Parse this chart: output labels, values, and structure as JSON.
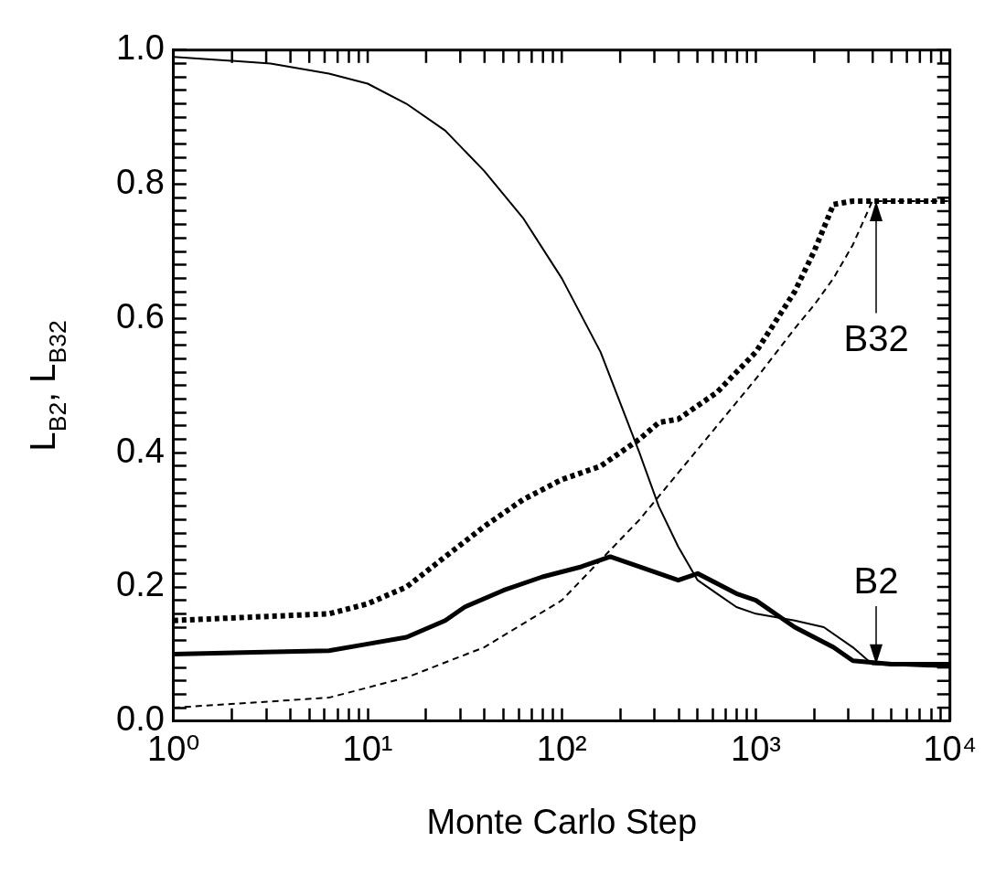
{
  "chart_data": {
    "type": "line",
    "xlabel": "Monte Carlo Step",
    "ylabel": "L$_{B2}$, L$_{B32}$",
    "log": "x",
    "grid": false,
    "legend": false,
    "marker": "none",
    "xlim": [
      1,
      10000
    ],
    "ylim": [
      0,
      1
    ],
    "xticks": [
      {
        "value": 1,
        "label": "10⁰"
      },
      {
        "value": 2,
        "label": null
      },
      {
        "value": 3,
        "label": null
      },
      {
        "value": 4,
        "label": null
      },
      {
        "value": 5,
        "label": null
      },
      {
        "value": 6,
        "label": null
      },
      {
        "value": 7,
        "label": null
      },
      {
        "value": 8,
        "label": null
      },
      {
        "value": 9,
        "label": null
      },
      {
        "value": 10,
        "label": "10¹"
      },
      {
        "value": 20,
        "label": null
      },
      {
        "value": 30,
        "label": null
      },
      {
        "value": 40,
        "label": null
      },
      {
        "value": 50,
        "label": null
      },
      {
        "value": 60,
        "label": null
      },
      {
        "value": 70,
        "label": null
      },
      {
        "value": 80,
        "label": null
      },
      {
        "value": 90,
        "label": null
      },
      {
        "value": 100,
        "label": "10²"
      },
      {
        "value": 200,
        "label": null
      },
      {
        "value": 300,
        "label": null
      },
      {
        "value": 400,
        "label": null
      },
      {
        "value": 500,
        "label": null
      },
      {
        "value": 600,
        "label": null
      },
      {
        "value": 700,
        "label": null
      },
      {
        "value": 800,
        "label": null
      },
      {
        "value": 900,
        "label": null
      },
      {
        "value": 1000,
        "label": "10³"
      },
      {
        "value": 2000,
        "label": null
      },
      {
        "value": 3000,
        "label": null
      },
      {
        "value": 4000,
        "label": null
      },
      {
        "value": 5000,
        "label": null
      },
      {
        "value": 6000,
        "label": null
      },
      {
        "value": 7000,
        "label": null
      },
      {
        "value": 8000,
        "label": null
      },
      {
        "value": 9000,
        "label": null
      },
      {
        "value": 10000,
        "label": "10⁴"
      }
    ],
    "yticks": [
      {
        "value": 0,
        "label": "0.0"
      },
      {
        "value": 0.02,
        "label": null
      },
      {
        "value": 0.04,
        "label": null
      },
      {
        "value": 0.06,
        "label": null
      },
      {
        "value": 0.08,
        "label": null
      },
      {
        "value": 0.1,
        "label": null
      },
      {
        "value": 0.12,
        "label": null
      },
      {
        "value": 0.14,
        "label": null
      },
      {
        "value": 0.16,
        "label": null
      },
      {
        "value": 0.18,
        "label": null
      },
      {
        "value": 0.2,
        "label": "0.2"
      },
      {
        "value": 0.22,
        "label": null
      },
      {
        "value": 0.24,
        "label": null
      },
      {
        "value": 0.26,
        "label": null
      },
      {
        "value": 0.28,
        "label": null
      },
      {
        "value": 0.3,
        "label": null
      },
      {
        "value": 0.32,
        "label": null
      },
      {
        "value": 0.34,
        "label": null
      },
      {
        "value": 0.36,
        "label": null
      },
      {
        "value": 0.38,
        "label": null
      },
      {
        "value": 0.4,
        "label": "0.4"
      },
      {
        "value": 0.42,
        "label": null
      },
      {
        "value": 0.44,
        "label": null
      },
      {
        "value": 0.46,
        "label": null
      },
      {
        "value": 0.48,
        "label": null
      },
      {
        "value": 0.5,
        "label": null
      },
      {
        "value": 0.52,
        "label": null
      },
      {
        "value": 0.54,
        "label": null
      },
      {
        "value": 0.56,
        "label": null
      },
      {
        "value": 0.58,
        "label": null
      },
      {
        "value": 0.6,
        "label": "0.6"
      },
      {
        "value": 0.62,
        "label": null
      },
      {
        "value": 0.64,
        "label": null
      },
      {
        "value": 0.66,
        "label": null
      },
      {
        "value": 0.68,
        "label": null
      },
      {
        "value": 0.7,
        "label": null
      },
      {
        "value": 0.72,
        "label": null
      },
      {
        "value": 0.74,
        "label": null
      },
      {
        "value": 0.76,
        "label": null
      },
      {
        "value": 0.78,
        "label": null
      },
      {
        "value": 0.8,
        "label": "0.8"
      },
      {
        "value": 0.82,
        "label": null
      },
      {
        "value": 0.84,
        "label": null
      },
      {
        "value": 0.86,
        "label": null
      },
      {
        "value": 0.88,
        "label": null
      },
      {
        "value": 0.9,
        "label": null
      },
      {
        "value": 0.92,
        "label": null
      },
      {
        "value": 0.94,
        "label": null
      },
      {
        "value": 0.96,
        "label": null
      },
      {
        "value": 0.98,
        "label": null
      },
      {
        "value": 1,
        "label": "1.0"
      }
    ],
    "series": [
      {
        "color": "#000000",
        "line_style": "solid",
        "x": [
          1,
          3.16,
          6.31,
          10,
          15.85,
          25.1,
          39.8,
          63.1,
          100,
          158.5,
          251.2,
          316.2,
          398.1,
          501.2,
          631,
          794.3,
          1000,
          1585,
          2239,
          3162,
          3981,
          10000
        ],
        "values": [
          0.99,
          0.98,
          0.965,
          0.95,
          0.92,
          0.88,
          0.82,
          0.75,
          0.66,
          0.55,
          0.4,
          0.32,
          0.26,
          0.21,
          0.19,
          0.17,
          0.16,
          0.15,
          0.14,
          0.11,
          0.085,
          0.08
        ]
      },
      {
        "color": "#000000",
        "line_style": "solid",
        "x": [
          1,
          6.31,
          10,
          15.85,
          25.1,
          31.6,
          50.1,
          79.4,
          125.9,
          177.8,
          251.2,
          398.1,
          501.2,
          794.3,
          1000,
          1585,
          2512,
          3162,
          5012,
          10000
        ],
        "values": [
          0.1,
          0.105,
          0.115,
          0.125,
          0.15,
          0.17,
          0.195,
          0.215,
          0.23,
          0.245,
          0.23,
          0.21,
          0.22,
          0.19,
          0.18,
          0.14,
          0.11,
          0.09,
          0.085,
          0.085
        ]
      },
      {
        "color": "#000000",
        "line_style": "dotted",
        "x": [
          1,
          6.31,
          10,
          15.85,
          25.1,
          39.8,
          63.1,
          100,
          158.5,
          251.2,
          316.2,
          398.1,
          631,
          1000,
          1585,
          1995,
          2512,
          3162,
          10000
        ],
        "values": [
          0.15,
          0.16,
          0.175,
          0.2,
          0.245,
          0.29,
          0.33,
          0.36,
          0.38,
          0.42,
          0.445,
          0.45,
          0.49,
          0.55,
          0.64,
          0.7,
          0.77,
          0.775,
          0.775
        ]
      },
      {
        "color": "#000000",
        "line_style": "dashed",
        "x": [
          1,
          6.31,
          15.85,
          39.8,
          100,
          158.5,
          251.2,
          398.1,
          631,
          1000,
          1585,
          1995,
          2512,
          3162,
          3981,
          10000
        ],
        "values": [
          0.02,
          0.035,
          0.065,
          0.11,
          0.18,
          0.24,
          0.3,
          0.37,
          0.44,
          0.51,
          0.585,
          0.62,
          0.66,
          0.71,
          0.775,
          0.775
        ]
      }
    ],
    "annotations": [
      "B32",
      "B2"
    ]
  }
}
